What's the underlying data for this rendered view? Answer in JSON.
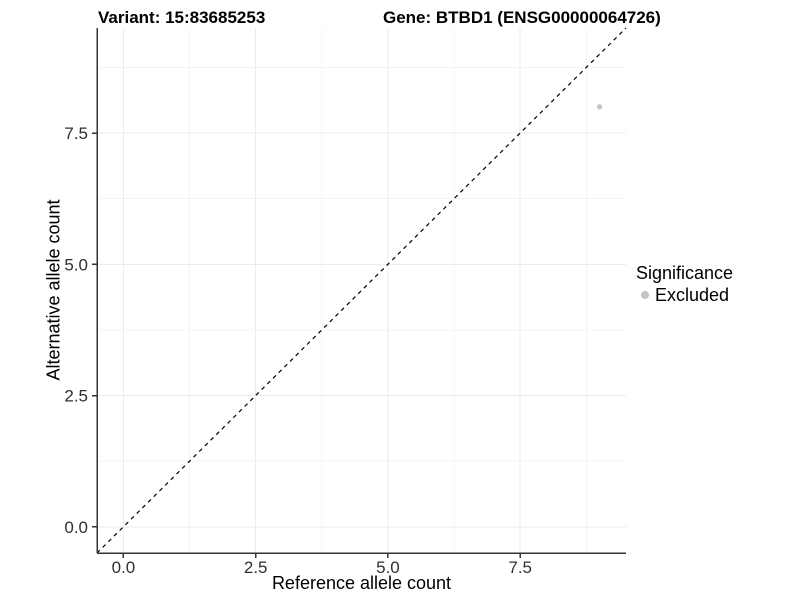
{
  "figure": {
    "titles": {
      "variant": "Variant: 15:83685253",
      "gene": "Gene: BTBD1 (ENSG00000064726)"
    }
  },
  "chart_data": {
    "type": "scatter",
    "title_left": "Variant: 15:83685253",
    "title_right": "Gene: BTBD1 (ENSG00000064726)",
    "xlabel": "Reference allele count",
    "ylabel": "Alternative allele count",
    "xlim": [
      -0.5,
      9.5
    ],
    "ylim": [
      -0.5,
      9.5
    ],
    "x_ticks": {
      "values": [
        0,
        2.5,
        5,
        7.5
      ],
      "labels": [
        "0.0",
        "2.5",
        "5.0",
        "7.5"
      ]
    },
    "y_ticks": {
      "values": [
        0,
        2.5,
        5,
        7.5
      ],
      "labels": [
        "0.0",
        "2.5",
        "5.0",
        "7.5"
      ]
    },
    "x_minor_ticks": [
      1.25,
      3.75,
      6.25,
      8.75
    ],
    "y_minor_ticks": [
      1.25,
      3.75,
      6.25,
      8.75
    ],
    "grid": "major-and-minor",
    "legend_position": "right",
    "reference_line": {
      "slope": 1,
      "intercept": 0,
      "style": "dashed",
      "color": "#000000"
    },
    "series": [
      {
        "name": "Excluded",
        "color": "#c4c4c4",
        "marker": "circle",
        "marker_radius": 2.6,
        "points": [
          {
            "x": 9,
            "y": 8
          }
        ]
      }
    ],
    "legend": {
      "title": "Significance",
      "entries": [
        {
          "label": "Excluded",
          "color": "#c4c4c4",
          "marker": "circle"
        }
      ]
    },
    "colors": {
      "background": "#ffffff",
      "grid_major": "#ebebeb",
      "grid_minor": "#f4f4f4",
      "axis_line": "#333333",
      "tick_mark": "#333333",
      "tick_label": "#303030"
    }
  }
}
